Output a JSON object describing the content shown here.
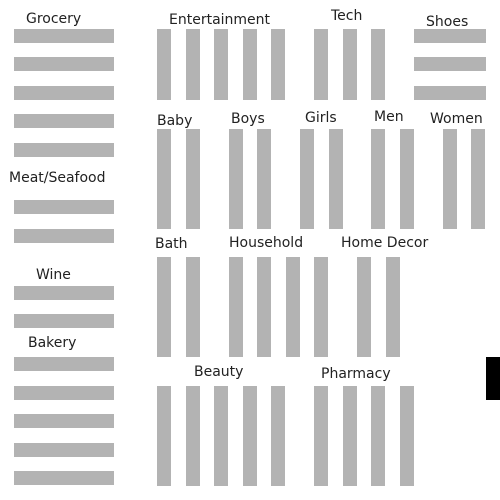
{
  "store_map": {
    "shelf_color": "#b3b3b3",
    "door_color": "#000000",
    "departments": [
      {
        "id": "grocery",
        "label": "Grocery"
      },
      {
        "id": "entertainment",
        "label": "Entertainment"
      },
      {
        "id": "tech",
        "label": "Tech"
      },
      {
        "id": "shoes",
        "label": "Shoes"
      },
      {
        "id": "baby",
        "label": "Baby"
      },
      {
        "id": "boys",
        "label": "Boys"
      },
      {
        "id": "girls",
        "label": "Girls"
      },
      {
        "id": "men",
        "label": "Men"
      },
      {
        "id": "women",
        "label": "Women"
      },
      {
        "id": "meat-seafood",
        "label": "Meat/Seafood"
      },
      {
        "id": "bath",
        "label": "Bath"
      },
      {
        "id": "household",
        "label": "Household"
      },
      {
        "id": "home-decor",
        "label": "Home Decor"
      },
      {
        "id": "wine",
        "label": "Wine"
      },
      {
        "id": "bakery",
        "label": "Bakery"
      },
      {
        "id": "beauty",
        "label": "Beauty"
      },
      {
        "id": "pharmacy",
        "label": "Pharmacy"
      }
    ]
  }
}
